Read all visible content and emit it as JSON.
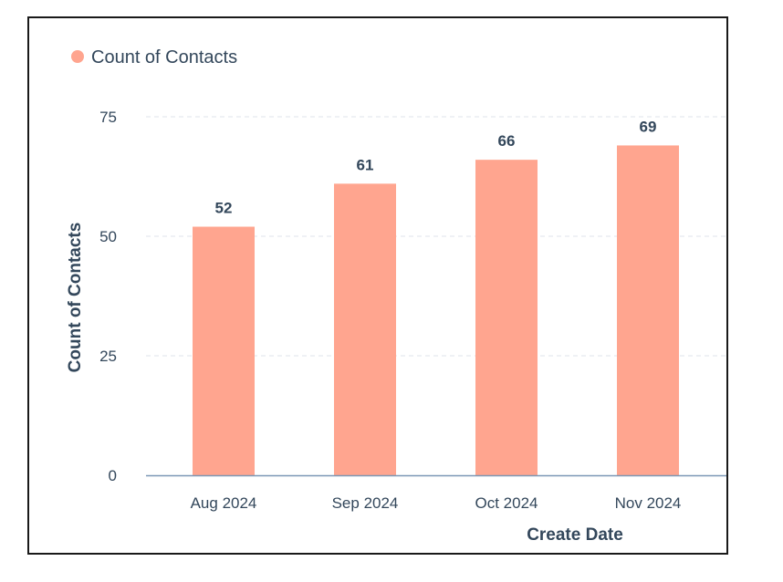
{
  "chart_data": {
    "type": "bar",
    "categories": [
      "Aug 2024",
      "Sep 2024",
      "Oct 2024",
      "Nov 2024"
    ],
    "series": [
      {
        "name": "Count of Contacts",
        "values": [
          52,
          61,
          66,
          69
        ],
        "color": "#ffa58f"
      }
    ],
    "xlabel": "Create Date",
    "ylabel": "Count of Contacts",
    "ylim": [
      0,
      75
    ],
    "yticks": [
      0,
      25,
      50,
      75
    ],
    "grid": true,
    "legend": "top-left",
    "axis_color": "#7c98b6",
    "grid_color": "#dfe3eb",
    "text_color": "#33475b"
  }
}
